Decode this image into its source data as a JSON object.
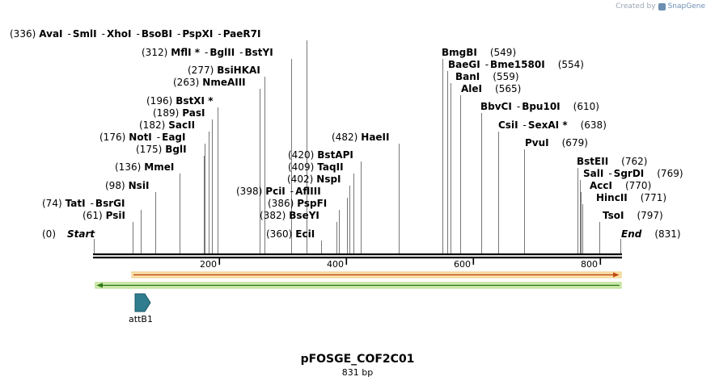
{
  "credit": {
    "prefix": "Created by",
    "brand": "SnapGene"
  },
  "map": {
    "name": "pFOSGE_COF2C01",
    "length_label": "831 bp",
    "length": 831,
    "ticks": [
      "200",
      "400",
      "600",
      "800"
    ],
    "ends": [
      {
        "name": "Start",
        "pos": "(0)"
      },
      {
        "name": "End",
        "pos": "(831)"
      }
    ],
    "features": [
      {
        "name": "attB1"
      }
    ],
    "sites": [
      {
        "pos": "(336)",
        "names": [
          "AvaI",
          "SmlI",
          "XhoI",
          "BsoBI",
          "PspXI",
          "PaeR7I"
        ]
      },
      {
        "pos": "(312)",
        "names": [
          "MflI *",
          "BglII",
          "BstYI"
        ]
      },
      {
        "pos": "(277)",
        "names": [
          "BsiHKAI"
        ]
      },
      {
        "pos": "(263)",
        "names": [
          "NmeAIII"
        ]
      },
      {
        "pos": "(196)",
        "names": [
          "BstXI *"
        ]
      },
      {
        "pos": "(189)",
        "names": [
          "PasI"
        ]
      },
      {
        "pos": "(182)",
        "names": [
          "SacII"
        ]
      },
      {
        "pos": "(176)",
        "names": [
          "NotI",
          "EagI"
        ]
      },
      {
        "pos": "(175)",
        "names": [
          "BglI"
        ]
      },
      {
        "pos": "(136)",
        "names": [
          "MmeI"
        ]
      },
      {
        "pos": "(98)",
        "names": [
          "NsiI"
        ]
      },
      {
        "pos": "(74)",
        "names": [
          "TatI",
          "BsrGI"
        ]
      },
      {
        "pos": "(61)",
        "names": [
          "PsiI"
        ]
      },
      {
        "pos": "(482)",
        "names": [
          "HaeII"
        ]
      },
      {
        "pos": "(420)",
        "names": [
          "BstAPI"
        ]
      },
      {
        "pos": "(409)",
        "names": [
          "TaqII"
        ]
      },
      {
        "pos": "(402)",
        "names": [
          "NspI"
        ]
      },
      {
        "pos": "(398)",
        "names": [
          "PciI",
          "AflIII"
        ]
      },
      {
        "pos": "(386)",
        "names": [
          "PspFI"
        ]
      },
      {
        "pos": "(382)",
        "names": [
          "BseYI"
        ]
      },
      {
        "pos": "(360)",
        "names": [
          "EciI"
        ]
      },
      {
        "pos": "(549)",
        "names": [
          "BmgBI"
        ]
      },
      {
        "pos": "(554)",
        "names": [
          "BaeGI",
          "Bme1580I"
        ]
      },
      {
        "pos": "(559)",
        "names": [
          "BanI"
        ]
      },
      {
        "pos": "(565)",
        "names": [
          "AleI"
        ]
      },
      {
        "pos": "(610)",
        "names": [
          "BbvCI",
          "Bpu10I"
        ]
      },
      {
        "pos": "(638)",
        "names": [
          "CsiI",
          "SexAI *"
        ]
      },
      {
        "pos": "(679)",
        "names": [
          "PvuI"
        ]
      },
      {
        "pos": "(762)",
        "names": [
          "BstEII"
        ]
      },
      {
        "pos": "(769)",
        "names": [
          "SalI",
          "SgrDI"
        ]
      },
      {
        "pos": "(770)",
        "names": [
          "AccI"
        ]
      },
      {
        "pos": "(771)",
        "names": [
          "HincII"
        ]
      },
      {
        "pos": "(797)",
        "names": [
          "TsoI"
        ]
      }
    ]
  }
}
